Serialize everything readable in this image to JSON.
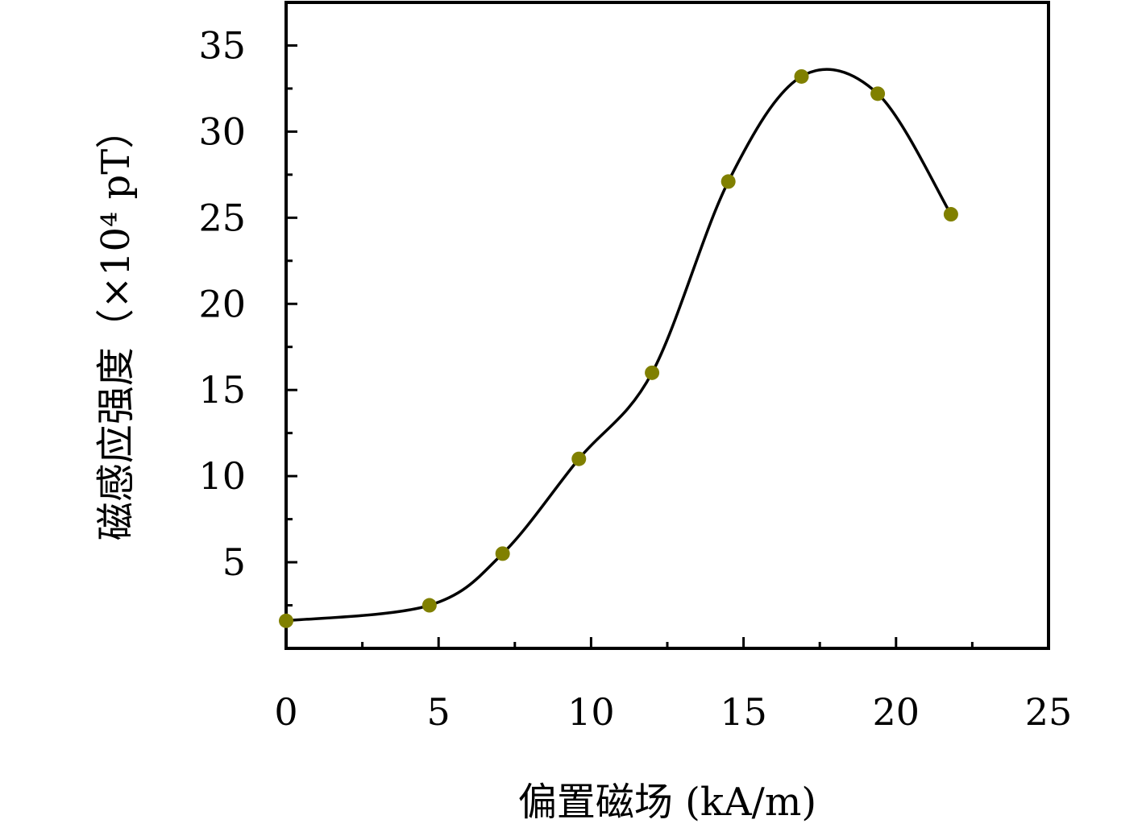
{
  "chart_data": {
    "type": "scatter",
    "title": "",
    "xlabel": "偏置磁场 (kA/m)",
    "ylabel": "磁感应强度（×10⁴ pT）",
    "xlim": [
      0,
      25
    ],
    "ylim": [
      0,
      37.5
    ],
    "x_ticks": [
      0,
      5,
      10,
      15,
      20,
      25
    ],
    "y_ticks": [
      5,
      10,
      15,
      20,
      25,
      30,
      35
    ],
    "x_tick_labels": [
      "0",
      "5",
      "10",
      "15",
      "20",
      "25"
    ],
    "y_tick_labels": [
      "5",
      "10",
      "15",
      "20",
      "25",
      "30",
      "35"
    ],
    "grid": false,
    "legend": "none",
    "series": [
      {
        "x": [
          0,
          4.7,
          7.1,
          9.6,
          12.0,
          14.5,
          16.9,
          19.4,
          21.8
        ],
        "y": [
          1.6,
          2.5,
          5.5,
          11.0,
          16.0,
          27.1,
          33.2,
          32.2,
          25.2
        ],
        "marker_color": "#808000",
        "line_color": "#000000",
        "smooth_line": true
      }
    ]
  }
}
